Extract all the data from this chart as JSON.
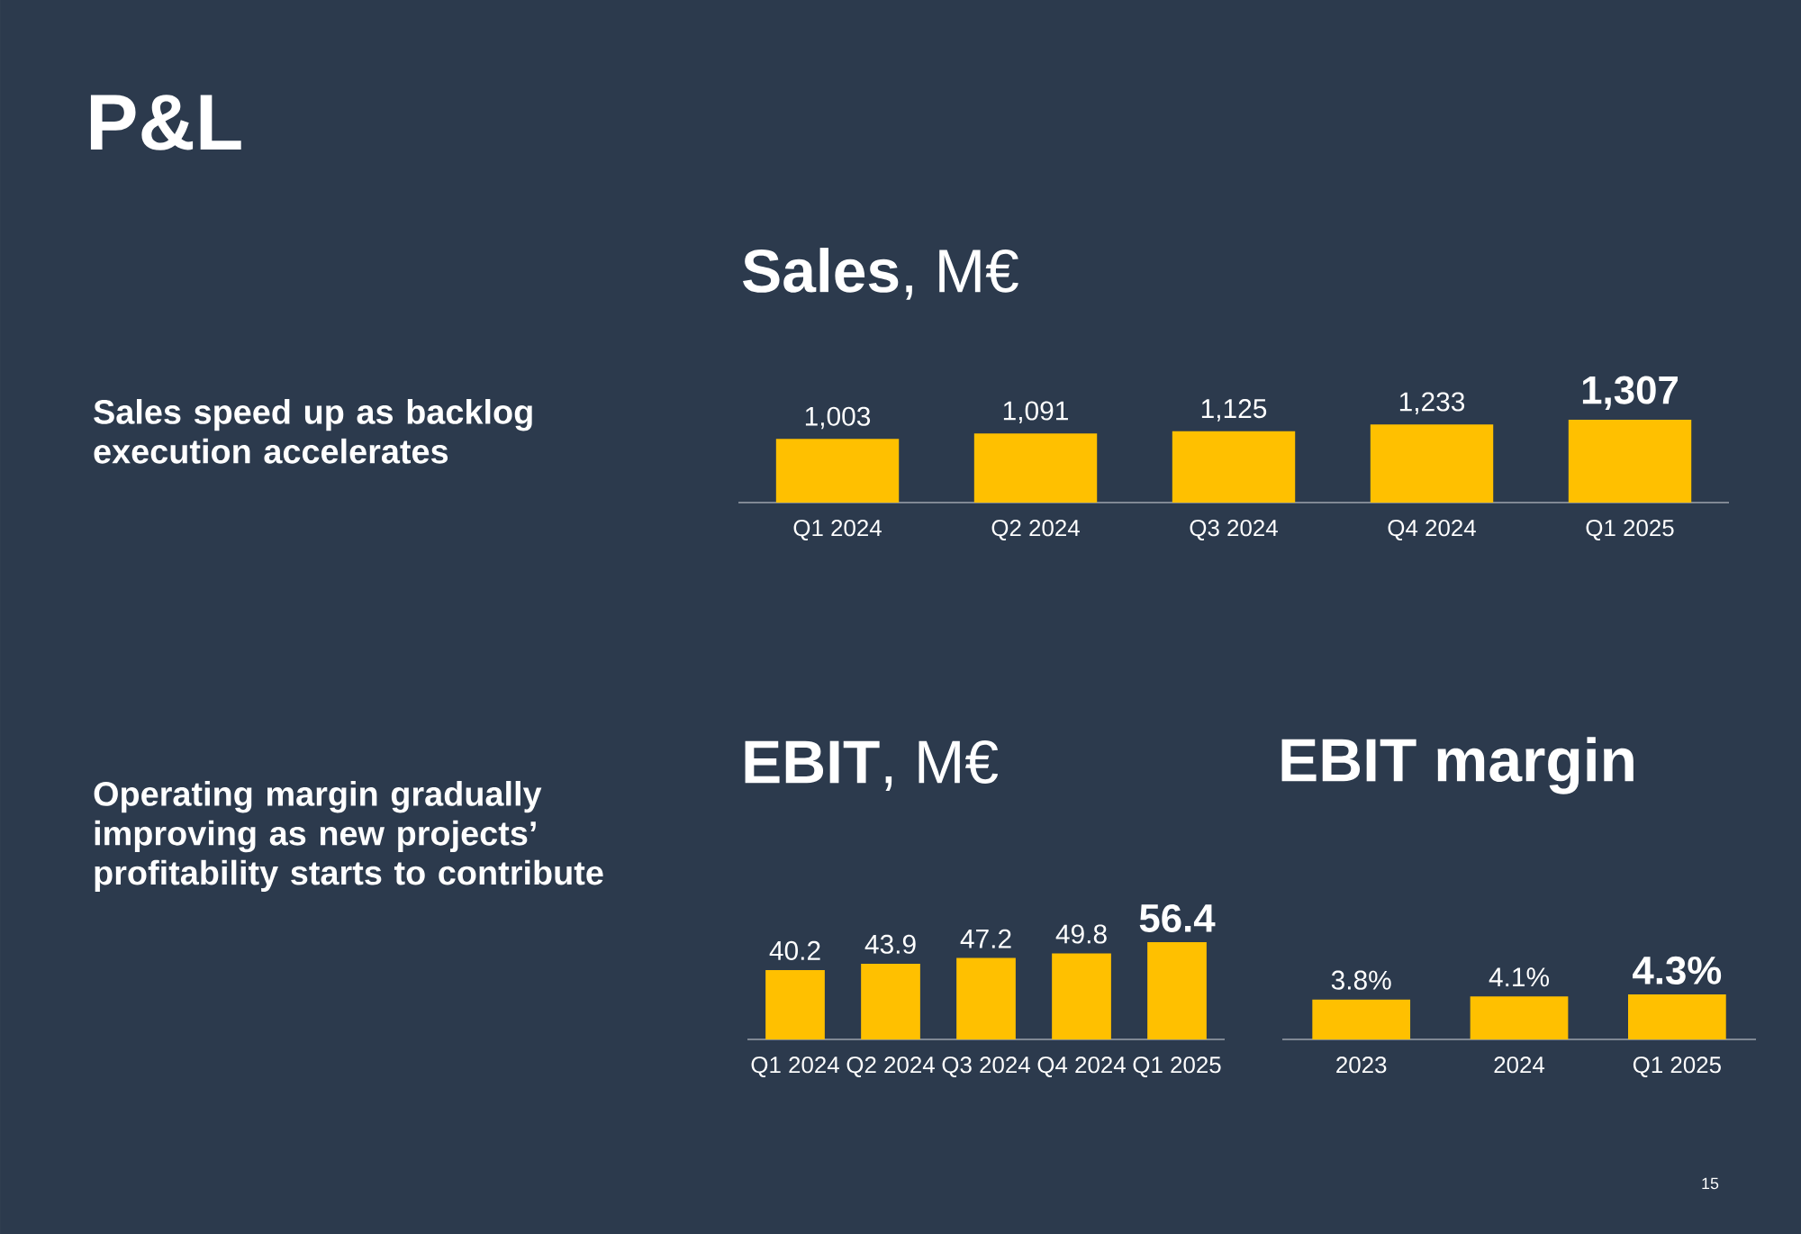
{
  "chart_data": [
    {
      "type": "other",
      "title": "P&L",
      "annotations": [
        "Sales speed up as backlog execution accelerates",
        "Operating margin gradually improving as new projects’ profitability starts to contribute",
        "15"
      ]
    },
    {
      "type": "bar",
      "title": "**Sales**, M€",
      "categories": [
        "Q1 2024",
        "Q2 2024",
        "Q3 2024",
        "Q4 2024",
        "Q1 2025"
      ],
      "values": [
        1003,
        1091,
        1125,
        1233,
        1307
      ],
      "value_labels": [
        "1,003",
        "1,091",
        "1,125",
        "1,233",
        "1,307"
      ],
      "color": "#ffc000"
    },
    {
      "type": "bar",
      "title": "**EBIT**, M€",
      "categories": [
        "Q1 2024",
        "Q2 2024",
        "Q3 2024",
        "Q4 2024",
        "Q1 2025"
      ],
      "values": [
        40.2,
        43.9,
        47.2,
        49.8,
        56.4
      ],
      "value_labels": [
        "40.2",
        "43.9",
        "47.2",
        "49.8",
        "56.4"
      ],
      "color": "#ffc000"
    },
    {
      "type": "bar",
      "title": "**EBIT margin**",
      "categories": [
        "2023",
        "2024",
        "Q1 2025"
      ],
      "values": [
        3.8,
        4.1,
        4.3
      ],
      "value_labels": [
        "3.8%",
        "4.1%",
        "4.3%"
      ],
      "color": "#ffc000"
    }
  ]
}
